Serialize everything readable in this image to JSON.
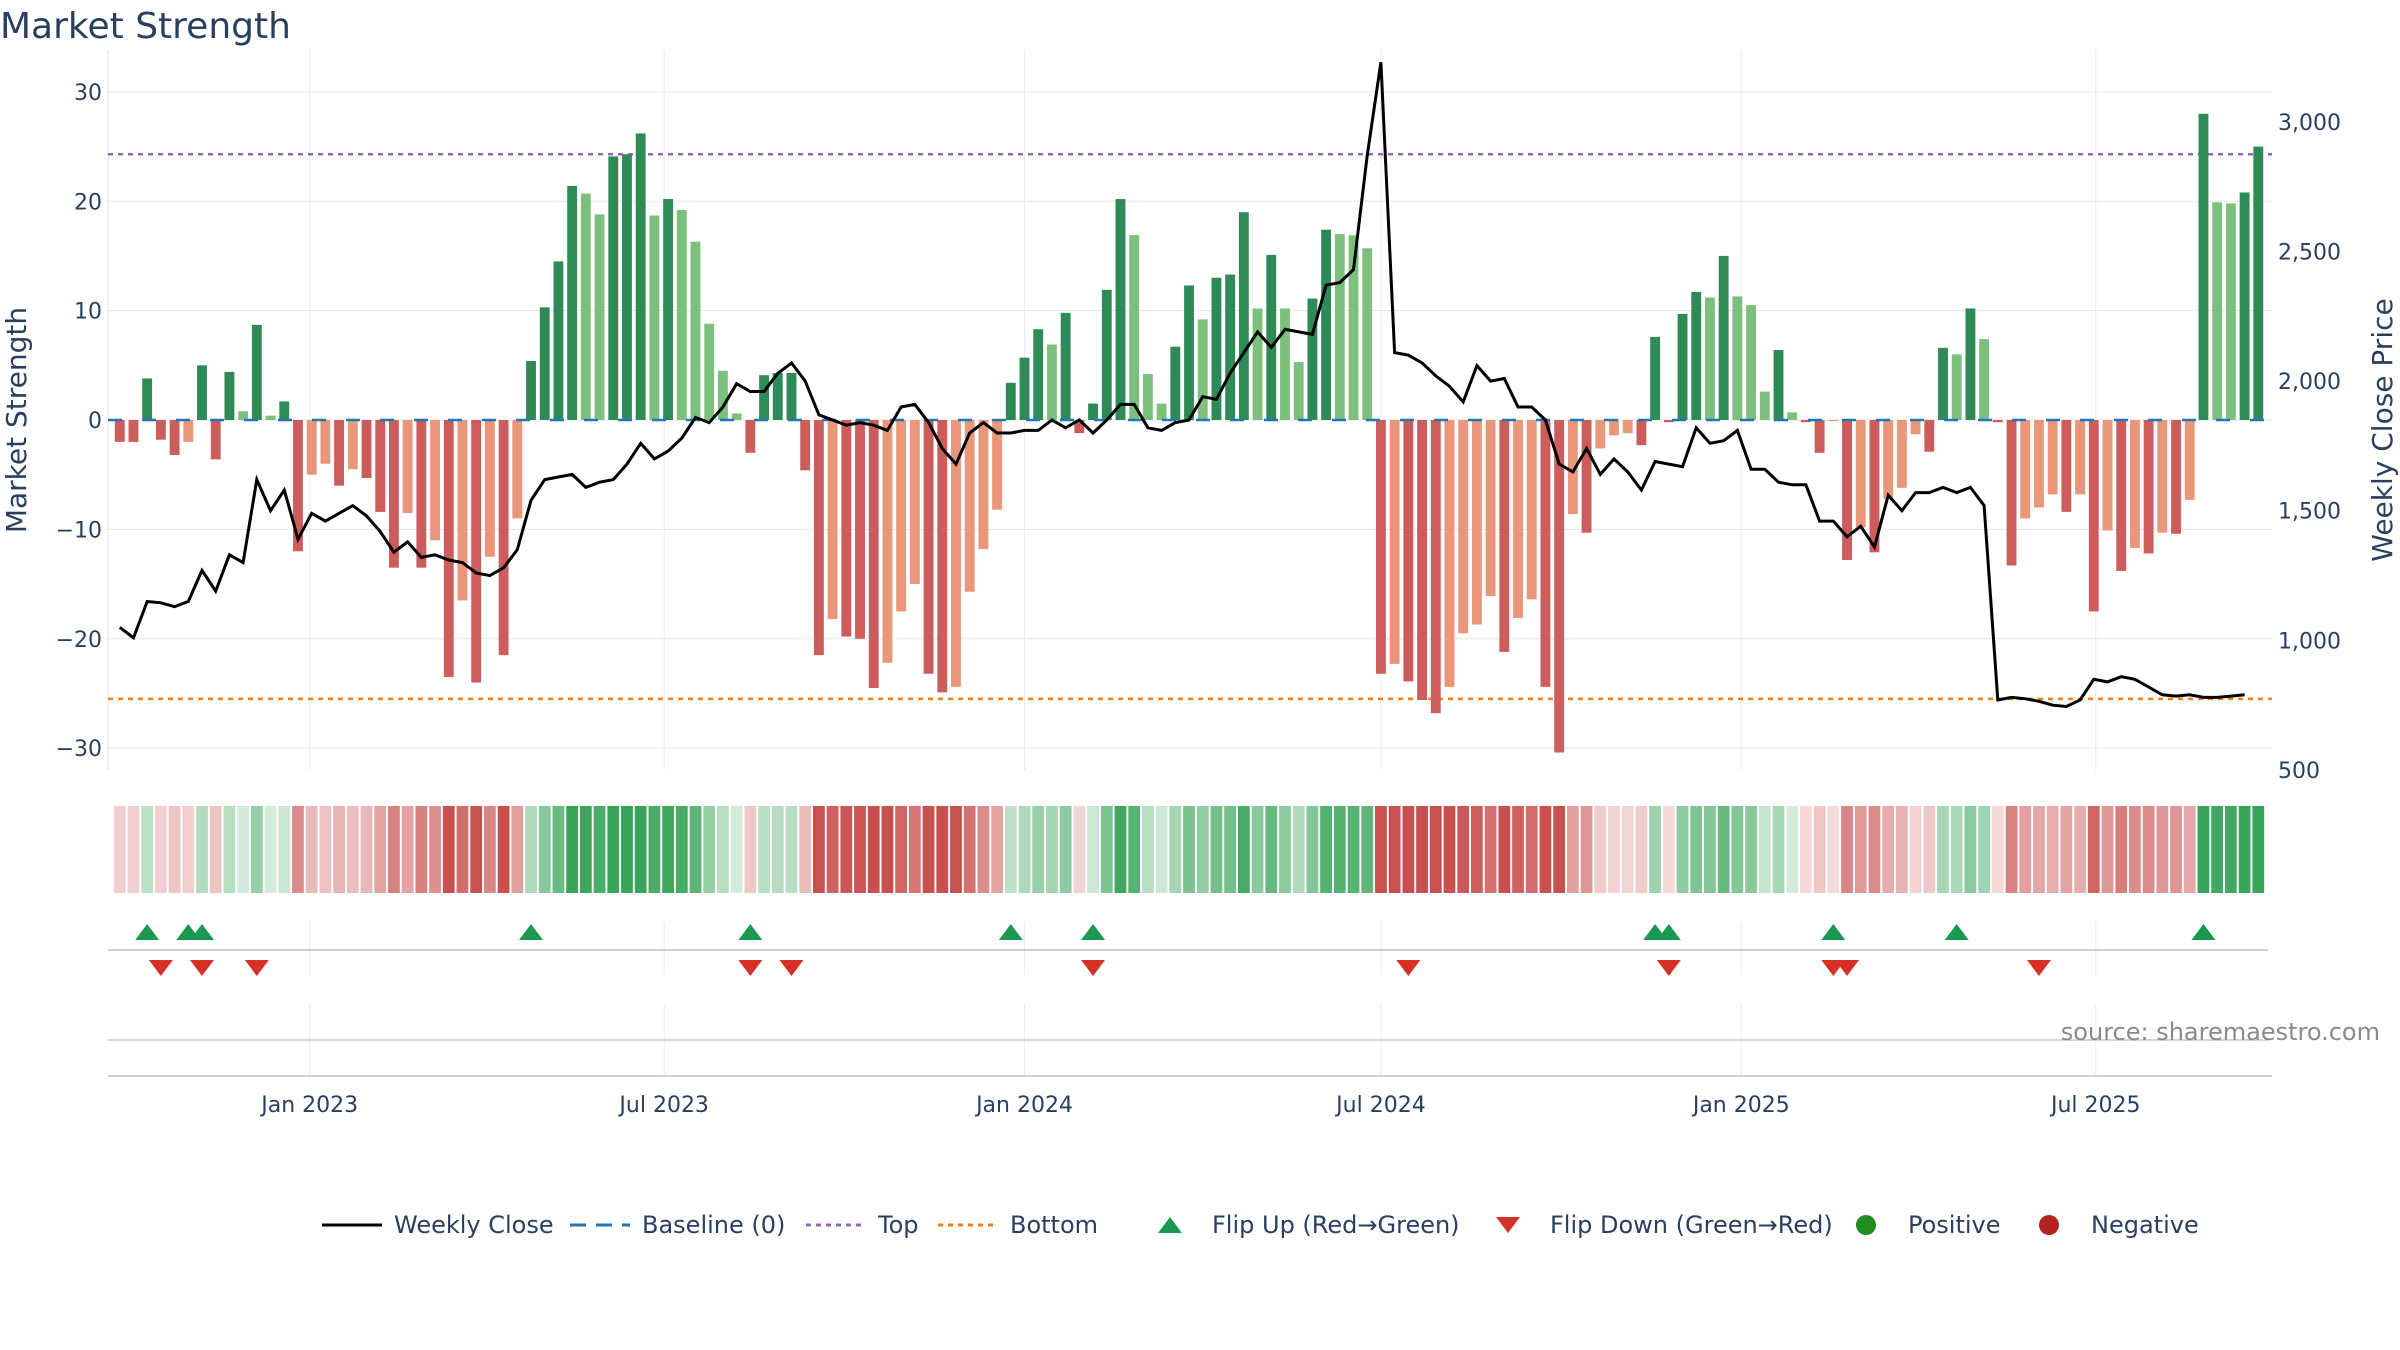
{
  "colors": {
    "pos_dark": "#2e8b57",
    "pos_light": "#7dc07d",
    "neg_dark": "#cd5c5c",
    "neg_light": "#e9967a",
    "baseline": "#1f77b4",
    "top": "#9467bd",
    "bottom": "#ff7f0e",
    "flip_up": "#1a9850",
    "flip_down": "#d73027",
    "dot_pos": "#228b22",
    "dot_neg": "#b22222",
    "price": "#000000"
  },
  "chart_data": {
    "type": "bar",
    "title": "Market Strength",
    "ylabel_left": "Market Strength",
    "ylabel_right": "Weekly Close Price",
    "source": "source: sharemaestro.com",
    "x_start": "2022-09-26",
    "x_range": [
      "2022-09-20",
      "2025-09-29"
    ],
    "x_ticks": [
      "Jan 2023",
      "Jul 2023",
      "Jan 2024",
      "Jul 2024",
      "Jan 2025",
      "Jul 2025"
    ],
    "x_tick_dates": [
      "2023-01-01",
      "2023-07-01",
      "2024-01-01",
      "2024-07-01",
      "2025-01-01",
      "2025-07-01"
    ],
    "ylim": [
      -32,
      32
    ],
    "yticks": [
      30,
      20,
      10,
      0,
      -10,
      -20,
      -30
    ],
    "ylim_price": [
      500,
      3200
    ],
    "yticks_price": [
      "3,000",
      "2,500",
      "2,000",
      "1,500",
      "1,000",
      "500"
    ],
    "yticks_price_values": [
      3000,
      2500,
      2000,
      1500,
      1000,
      500
    ],
    "top_threshold": 24.3,
    "bottom_threshold": -25.5,
    "strength": [
      -2,
      -2,
      3.8,
      -1.8,
      -3.2,
      -2,
      5,
      -3.6,
      4.4,
      0.8,
      8.7,
      0.4,
      1.7,
      -12,
      -5,
      -4,
      -6,
      -4.5,
      -5.3,
      -8.4,
      -13.5,
      -8.5,
      -13.5,
      -11,
      -23.5,
      -16.5,
      -24,
      -12.5,
      -21.5,
      -9,
      5.4,
      10.3,
      14.5,
      21.4,
      20.7,
      18.8,
      24.1,
      24.3,
      26.2,
      18.7,
      20.2,
      19.2,
      16.3,
      8.8,
      4.5,
      0.6,
      -3,
      4.1,
      4.3,
      4.3,
      -4.6,
      -21.5,
      -18.2,
      -19.8,
      -20,
      -24.5,
      -22.2,
      -17.5,
      -15,
      -23.2,
      -24.9,
      -24.4,
      -15.7,
      -11.8,
      -8.2,
      3.4,
      5.7,
      8.3,
      6.9,
      9.8,
      -1.2,
      1.5,
      11.9,
      20.2,
      16.9,
      4.2,
      1.5,
      6.7,
      12.3,
      9.2,
      13,
      13.3,
      19,
      10.2,
      15.1,
      10.2,
      5.3,
      11.1,
      17.4,
      17,
      16.9,
      15.7,
      -23.2,
      -22.3,
      -23.9,
      -25.6,
      -26.8,
      -24.4,
      -19.5,
      -18.7,
      -16.1,
      -21.2,
      -18.1,
      -16.4,
      -24.4,
      -30.4,
      -8.6,
      -10.3,
      -2.6,
      -1.4,
      -1.2,
      -2.3,
      7.6,
      -0.2,
      9.7,
      11.7,
      11.2,
      15,
      11.3,
      10.5,
      2.6,
      6.4,
      0.7,
      -0.2,
      -3,
      -0.1,
      -12.8,
      -9.8,
      -12.1,
      -7.2,
      -6.2,
      -1.3,
      -2.9,
      6.6,
      6,
      10.2,
      7.4,
      -0.2,
      -13.3,
      -9,
      -8,
      -6.8,
      -8.4,
      -6.8,
      -17.5,
      -10.1,
      -13.8,
      -11.7,
      -12.2,
      -10.3,
      -10.4,
      -7.3,
      28,
      19.9,
      19.8,
      20.8,
      25
    ],
    "price": [
      1050,
      1010,
      1150,
      1145,
      1130,
      1150,
      1270,
      1190,
      1330,
      1300,
      1620,
      1500,
      1580,
      1390,
      1490,
      1460,
      1490,
      1520,
      1480,
      1420,
      1340,
      1380,
      1320,
      1330,
      1310,
      1300,
      1260,
      1250,
      1280,
      1350,
      1540,
      1620,
      1630,
      1640,
      1590,
      1610,
      1620,
      1680,
      1760,
      1700,
      1730,
      1780,
      1860,
      1840,
      1900,
      1990,
      1960,
      1960,
      2030,
      2070,
      2000,
      1870,
      1850,
      1830,
      1840,
      1830,
      1810,
      1900,
      1910,
      1840,
      1740,
      1680,
      1800,
      1840,
      1800,
      1800,
      1810,
      1810,
      1850,
      1820,
      1850,
      1800,
      1850,
      1910,
      1910,
      1820,
      1810,
      1840,
      1850,
      1940,
      1930,
      2030,
      2110,
      2190,
      2130,
      2200,
      2190,
      2180,
      2370,
      2380,
      2430,
      2870,
      3230,
      2110,
      2100,
      2070,
      2020,
      1980,
      1920,
      2060,
      2000,
      2010,
      1900,
      1900,
      1850,
      1680,
      1650,
      1740,
      1640,
      1700,
      1650,
      1580,
      1690,
      1680,
      1670,
      1820,
      1760,
      1770,
      1810,
      1660,
      1660,
      1610,
      1600,
      1600,
      1460,
      1460,
      1400,
      1440,
      1360,
      1560,
      1500,
      1570,
      1570,
      1590,
      1570,
      1590,
      1520,
      770,
      780,
      775,
      765,
      750,
      745,
      770,
      850,
      840,
      860,
      850,
      820,
      790,
      785,
      790,
      780,
      780,
      785,
      790
    ],
    "flip_up_dates": [
      "2022-10-10",
      "2022-10-31",
      "2022-11-07",
      "2023-04-24",
      "2023-08-14",
      "2023-12-25",
      "2024-02-05",
      "2024-11-18",
      "2024-11-25",
      "2025-02-17",
      "2025-04-21",
      "2025-08-25"
    ],
    "flip_down_dates": [
      "2022-10-17",
      "2022-11-07",
      "2022-12-05",
      "2023-08-14",
      "2023-09-04",
      "2024-02-05",
      "2024-07-15",
      "2024-11-25",
      "2025-02-17",
      "2025-02-24",
      "2025-06-02"
    ],
    "legend": [
      "Weekly Close",
      "Baseline (0)",
      "Top",
      "Bottom",
      "Flip Up (Red→Green)",
      "Flip Down (Green→Red)",
      "Positive",
      "Negative"
    ]
  }
}
